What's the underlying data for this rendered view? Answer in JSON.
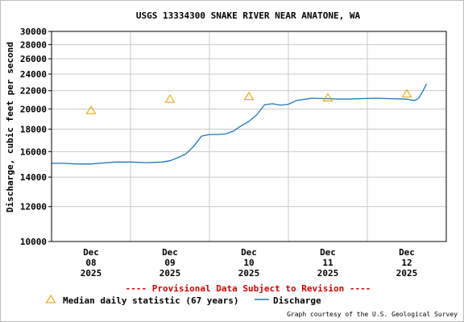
{
  "chart_data": {
    "type": "line",
    "title": "USGS 13334300 SNAKE RIVER NEAR ANATONE, WA",
    "ylabel": "Discharge, cubic feet per second",
    "xlabel": "",
    "y_scale": "log",
    "ylim": [
      10000,
      30000
    ],
    "xlim": [
      0,
      5
    ],
    "grid": true,
    "y_ticks": [
      10000,
      12000,
      14000,
      16000,
      18000,
      20000,
      22000,
      24000,
      26000,
      28000,
      30000
    ],
    "y_tick_labels": [
      "10000",
      "12000",
      "14000",
      "16000",
      "18000",
      "20000",
      "22000",
      "24000",
      "26000",
      "28000",
      "30000"
    ],
    "x_ticks": [
      {
        "x": 0.5,
        "lines": [
          "Dec",
          "08",
          "2025"
        ]
      },
      {
        "x": 1.5,
        "lines": [
          "Dec",
          "09",
          "2025"
        ]
      },
      {
        "x": 2.5,
        "lines": [
          "Dec",
          "10",
          "2025"
        ]
      },
      {
        "x": 3.5,
        "lines": [
          "Dec",
          "11",
          "2025"
        ]
      },
      {
        "x": 4.5,
        "lines": [
          "Dec",
          "12",
          "2025"
        ]
      }
    ],
    "series": [
      {
        "name": "Discharge",
        "color": "#1f77b4",
        "x": [
          0,
          0.15,
          0.3,
          0.5,
          0.6,
          0.8,
          1.0,
          1.2,
          1.4,
          1.5,
          1.6,
          1.7,
          1.8,
          1.9,
          2.0,
          2.1,
          2.2,
          2.3,
          2.4,
          2.5,
          2.6,
          2.7,
          2.8,
          2.9,
          3.0,
          3.1,
          3.3,
          3.5,
          3.7,
          3.9,
          4.1,
          4.3,
          4.5,
          4.6,
          4.65,
          4.7,
          4.75
        ],
        "y": [
          15050,
          15050,
          15000,
          15000,
          15050,
          15150,
          15150,
          15100,
          15150,
          15250,
          15500,
          15800,
          16450,
          17350,
          17500,
          17500,
          17550,
          17800,
          18300,
          18750,
          19400,
          20450,
          20550,
          20400,
          20500,
          20900,
          21150,
          21100,
          21050,
          21100,
          21150,
          21100,
          21050,
          20900,
          21150,
          21900,
          22800
        ]
      }
    ],
    "markers": {
      "name": "Median daily statistic (67 years)",
      "color": "#e39b00",
      "x": [
        0.5,
        1.5,
        2.5,
        3.5,
        4.5
      ],
      "y": [
        19850,
        21050,
        21350,
        21200,
        21650
      ]
    }
  },
  "provisional_text": "---- Provisional Data Subject to Revision ----",
  "legend": {
    "median_label": "Median daily statistic (67 years)",
    "discharge_label": "Discharge"
  },
  "credit": "Graph courtesy of the U.S. Geological Survey"
}
